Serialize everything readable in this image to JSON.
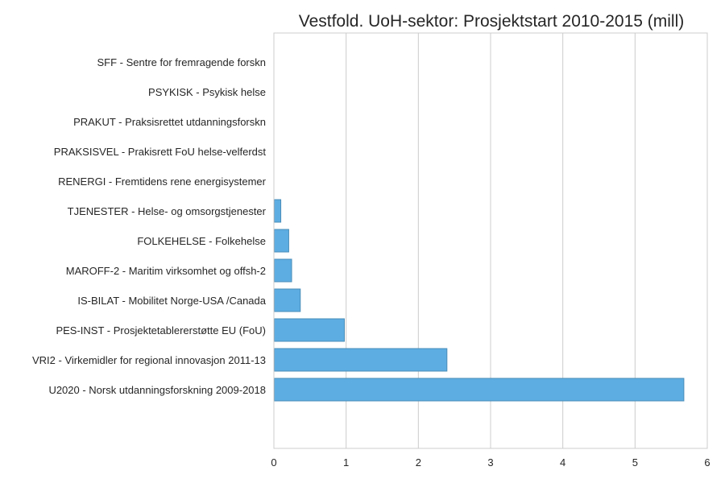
{
  "chart_data": {
    "type": "bar",
    "orientation": "horizontal",
    "title": "Vestfold. UoH-sektor: Prosjektstart 2010-2015 (mill)",
    "xlabel": "",
    "ylabel": "",
    "xlim": [
      0,
      6
    ],
    "xticks": [
      "0",
      "1",
      "2",
      "3",
      "4",
      "5",
      "6"
    ],
    "grid": "vertical",
    "categories": [
      "SFF - Sentre for fremragende forskn",
      "PSYKISK - Psykisk helse",
      "PRAKUT - Praksisrettet utdanningsforskn",
      "PRAKSISVEL - Prakisrett FoU helse-velferdst",
      "RENERGI - Fremtidens rene energisystemer",
      "TJENESTER - Helse- og omsorgstjenester",
      "FOLKEHELSE - Folkehelse",
      "MAROFF-2 - Maritim virksomhet og offsh-2",
      "IS-BILAT - Mobilitet Norge-USA /Canada",
      "PES-INST - Prosjektetablererstøtte EU (FoU)",
      "VRI2 - Virkemidler for regional innovasjon 2011-13",
      "U2020 - Norsk utdanningsforskning 2009-2018"
    ],
    "values": [
      0,
      0,
      0,
      0,
      0,
      0.09,
      0.2,
      0.24,
      0.36,
      0.97,
      2.39,
      5.67
    ],
    "bar_color": "#5DADE2",
    "bar_edge_color": "#4A8DB8",
    "grid_color": "#CCCCCC",
    "axis_color": "#CCCCCC"
  }
}
